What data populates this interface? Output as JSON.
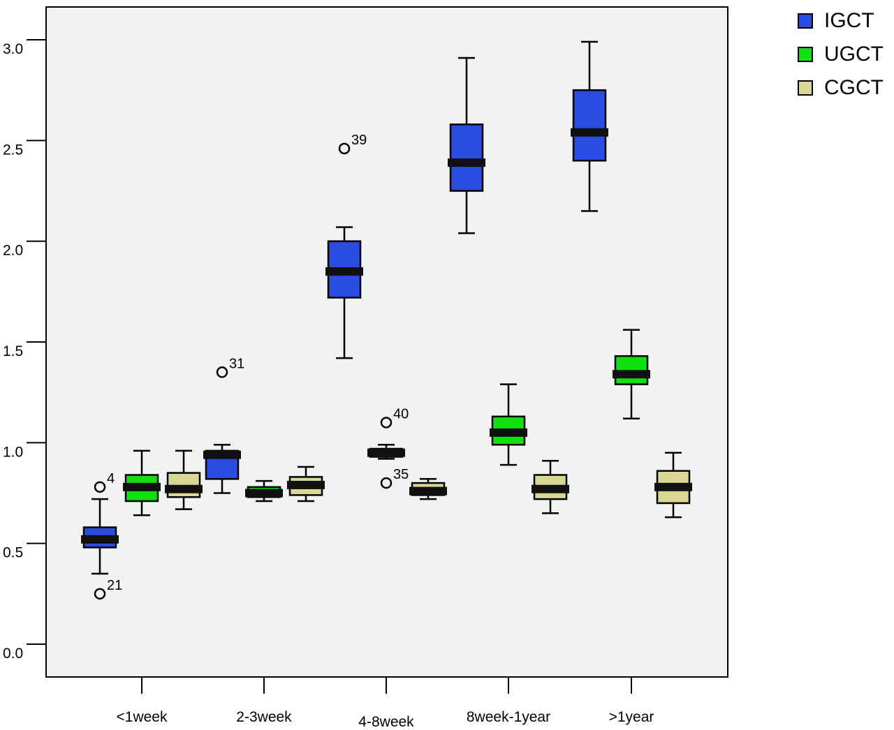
{
  "chart_data": {
    "type": "box",
    "title": "",
    "xlabel": "",
    "ylabel": "",
    "ylim": [
      -0.08,
      3.15
    ],
    "yticks": [
      "0.0",
      "0.5",
      "1.0",
      "1.5",
      "2.0",
      "2.5",
      "3.0"
    ],
    "grid": false,
    "legend_position": "top-right, outside plot",
    "categories": [
      "<1week",
      "2-3week",
      "4-8week",
      "8week-1year",
      ">1year"
    ],
    "series": [
      {
        "name": "IGCT",
        "color": "#2b4ce0",
        "boxes": [
          {
            "min": 0.35,
            "q1": 0.48,
            "median": 0.52,
            "q3": 0.58,
            "max": 0.72
          },
          {
            "min": 0.75,
            "q1": 0.82,
            "median": 0.94,
            "q3": 0.96,
            "max": 0.99
          },
          {
            "min": 1.42,
            "q1": 1.72,
            "median": 1.85,
            "q3": 2.0,
            "max": 2.07
          },
          {
            "min": 2.04,
            "q1": 2.25,
            "median": 2.39,
            "q3": 2.58,
            "max": 2.91
          },
          {
            "min": 2.15,
            "q1": 2.4,
            "median": 2.54,
            "q3": 2.75,
            "max": 2.99
          }
        ]
      },
      {
        "name": "UGCT",
        "color": "#10e010",
        "boxes": [
          {
            "min": 0.64,
            "q1": 0.71,
            "median": 0.78,
            "q3": 0.84,
            "max": 0.96
          },
          {
            "min": 0.71,
            "q1": 0.73,
            "median": 0.75,
            "q3": 0.78,
            "max": 0.81
          },
          {
            "min": 0.92,
            "q1": 0.93,
            "median": 0.95,
            "q3": 0.97,
            "max": 0.99
          },
          {
            "min": 0.89,
            "q1": 0.99,
            "median": 1.05,
            "q3": 1.13,
            "max": 1.29
          },
          {
            "min": 1.12,
            "q1": 1.29,
            "median": 1.34,
            "q3": 1.43,
            "max": 1.56
          }
        ]
      },
      {
        "name": "CGCT",
        "color": "#d9d793",
        "boxes": [
          {
            "min": 0.67,
            "q1": 0.73,
            "median": 0.77,
            "q3": 0.85,
            "max": 0.96
          },
          {
            "min": 0.71,
            "q1": 0.74,
            "median": 0.79,
            "q3": 0.83,
            "max": 0.88
          },
          {
            "min": 0.72,
            "q1": 0.74,
            "median": 0.76,
            "q3": 0.8,
            "max": 0.82
          },
          {
            "min": 0.65,
            "q1": 0.72,
            "median": 0.77,
            "q3": 0.84,
            "max": 0.91
          },
          {
            "min": 0.63,
            "q1": 0.7,
            "median": 0.78,
            "q3": 0.86,
            "max": 0.95
          }
        ]
      }
    ],
    "outliers": [
      {
        "category": "<1week",
        "series": "IGCT",
        "value": 0.78,
        "label": "4"
      },
      {
        "category": "<1week",
        "series": "IGCT",
        "value": 0.25,
        "label": "21"
      },
      {
        "category": "2-3week",
        "series": "IGCT",
        "value": 1.35,
        "label": "31"
      },
      {
        "category": "4-8week",
        "series": "IGCT",
        "value": 2.46,
        "label": "39"
      },
      {
        "category": "4-8week",
        "series": "UGCT",
        "value": 1.1,
        "label": "40"
      },
      {
        "category": "4-8week",
        "series": "UGCT",
        "value": 0.8,
        "label": "35"
      }
    ]
  }
}
